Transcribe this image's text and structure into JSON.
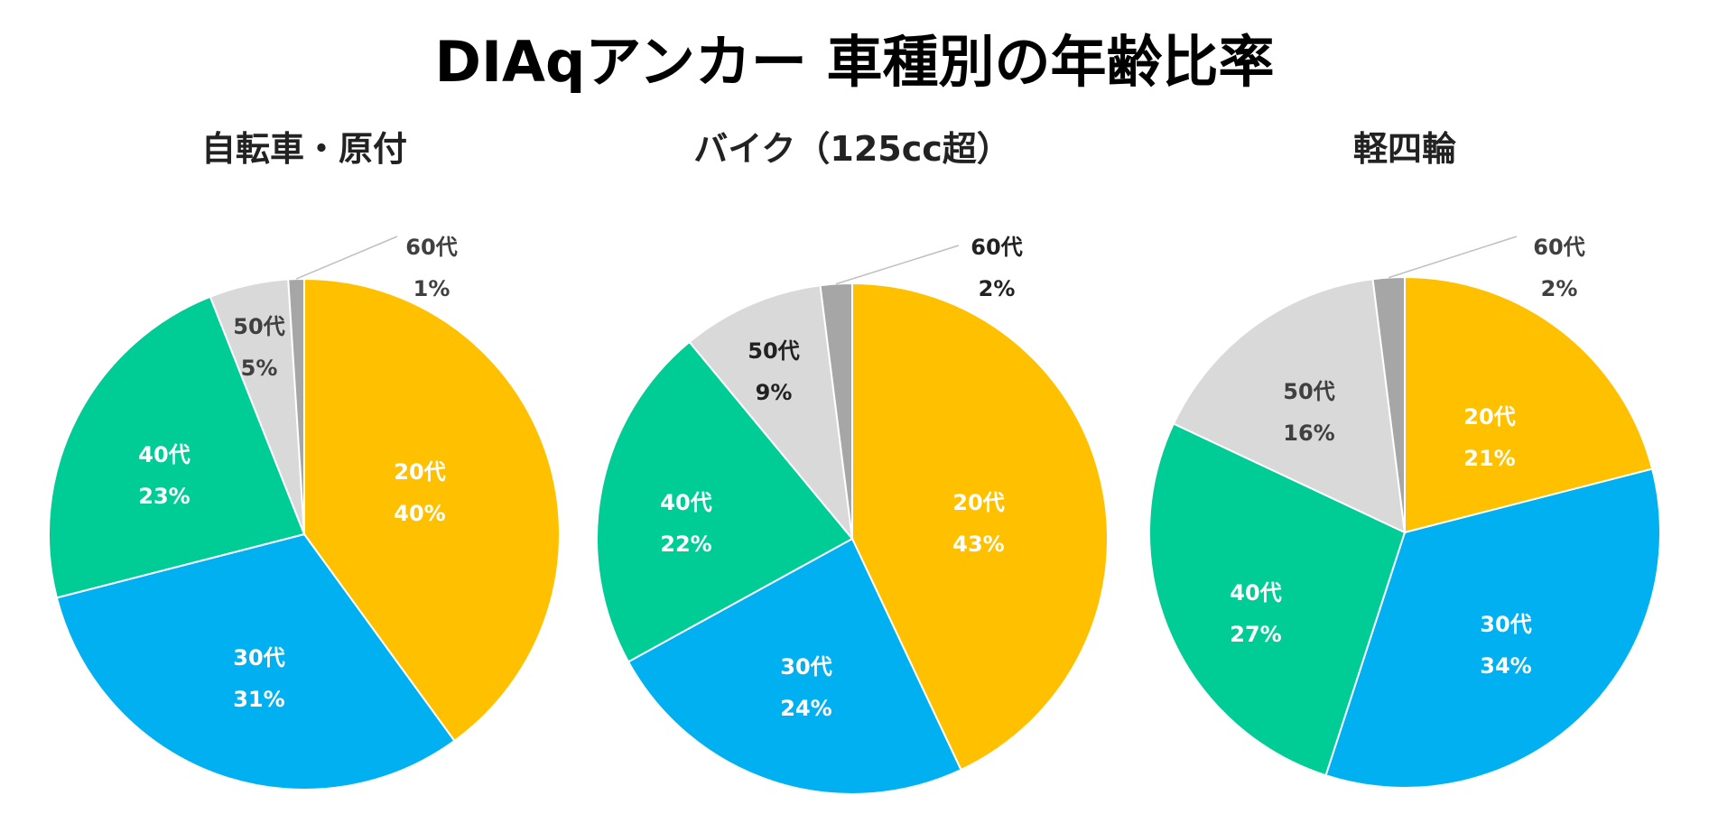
{
  "title": "DIAqアンカー 車種別の年齢比率",
  "colors": {
    "20代": "#FFC000",
    "30代": "#00B0F0",
    "40代": "#00CC96",
    "50代": "#D9D9D9",
    "60代": "#A6A6A6"
  },
  "chart_data": [
    {
      "type": "pie",
      "title": "自転車・原付",
      "categories": [
        "20代",
        "30代",
        "40代",
        "50代",
        "60代"
      ],
      "values": [
        40,
        31,
        23,
        5,
        1
      ],
      "labels": [
        "40%",
        "31%",
        "23%",
        "5%",
        "1%"
      ],
      "start_angle_deg": 0,
      "direction": "clockwise"
    },
    {
      "type": "pie",
      "title": "バイク（125cc超）",
      "categories": [
        "20代",
        "30代",
        "40代",
        "50代",
        "60代"
      ],
      "values": [
        43,
        24,
        22,
        9,
        2
      ],
      "labels": [
        "43%",
        "24%",
        "22%",
        "9%",
        "2%"
      ],
      "start_angle_deg": 0,
      "direction": "clockwise"
    },
    {
      "type": "pie",
      "title": "軽四輪",
      "categories": [
        "20代",
        "30代",
        "40代",
        "50代",
        "60代"
      ],
      "values": [
        21,
        34,
        27,
        16,
        2
      ],
      "labels": [
        "21%",
        "34%",
        "27%",
        "16%",
        "2%"
      ],
      "start_angle_deg": 0,
      "direction": "clockwise"
    }
  ]
}
